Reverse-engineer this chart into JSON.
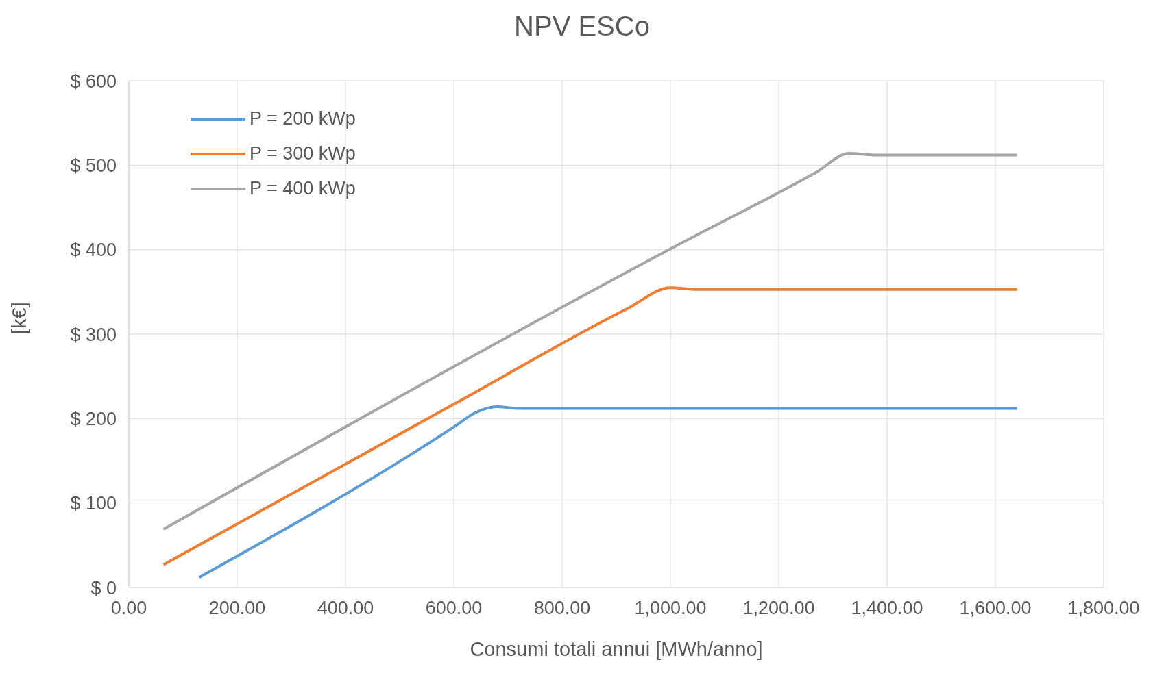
{
  "chart_data": {
    "type": "line",
    "title": "NPV ESCo",
    "xlabel": "Consumi totali annui [MWh/anno]",
    "ylabel": "[k€]",
    "xlim": [
      0,
      1800
    ],
    "xticks": [
      {
        "value": 0,
        "label": "0.00"
      },
      {
        "value": 200,
        "label": "200.00"
      },
      {
        "value": 400,
        "label": "400.00"
      },
      {
        "value": 600,
        "label": "600.00"
      },
      {
        "value": 800,
        "label": "800.00"
      },
      {
        "value": 1000,
        "label": "1,000.00"
      },
      {
        "value": 1200,
        "label": "1,200.00"
      },
      {
        "value": 1400,
        "label": "1,400.00"
      },
      {
        "value": 1600,
        "label": "1,600.00"
      },
      {
        "value": 1800,
        "label": "1,800.00"
      }
    ],
    "ylim": [
      0,
      600
    ],
    "yticks": [
      {
        "value": 0,
        "label": "$ 0"
      },
      {
        "value": 100,
        "label": "$ 100"
      },
      {
        "value": 200,
        "label": "$ 200"
      },
      {
        "value": 300,
        "label": "$ 300"
      },
      {
        "value": 400,
        "label": "$ 400"
      },
      {
        "value": 500,
        "label": "$ 500"
      },
      {
        "value": 600,
        "label": "$ 600"
      }
    ],
    "grid": true,
    "legend": "top left",
    "marker": "none",
    "line_style": "solid",
    "series": [
      {
        "name": "P = 200 kWp",
        "color": "#5b9bd5",
        "x": [
          130,
          600,
          640,
          680,
          720,
          1640
        ],
        "values": [
          12,
          190,
          207,
          214,
          212,
          212
        ]
      },
      {
        "name": "P = 300 kWp",
        "color": "#ed7d31",
        "x": [
          64,
          600,
          920,
          1000,
          1050,
          1640
        ],
        "values": [
          27,
          217,
          330,
          355,
          353,
          353
        ]
      },
      {
        "name": "P = 400 kWp",
        "color": "#a5a5a5",
        "x": [
          64,
          1000,
          1270,
          1330,
          1380,
          1640
        ],
        "values": [
          69,
          401,
          492,
          514,
          512,
          512
        ]
      }
    ]
  }
}
